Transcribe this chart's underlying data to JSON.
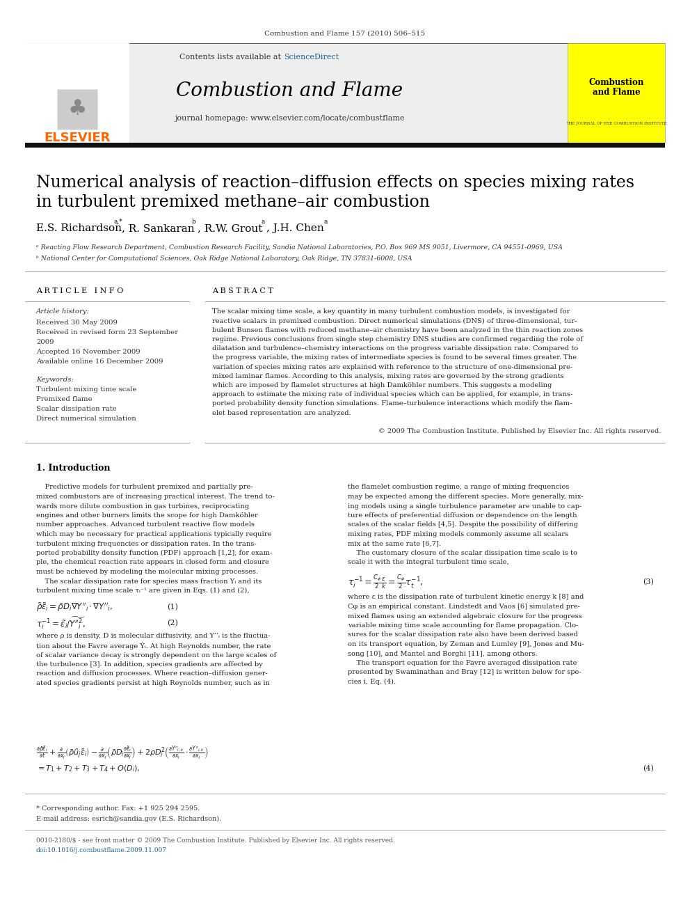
{
  "page_width": 9.92,
  "page_height": 13.23,
  "bg_color": "#ffffff",
  "journal_citation": "Combustion and Flame 157 (2010) 506–515",
  "header_bg": "#eeeeee",
  "contents_text": "Contents lists available at ",
  "sciencedirect_text": "ScienceDirect",
  "sciencedirect_color": "#1a6496",
  "journal_title": "Combustion and Flame",
  "journal_homepage": "journal homepage: www.elsevier.com/locate/combustflame",
  "article_title_line1": "Numerical analysis of reaction–diffusion effects on species mixing rates",
  "article_title_line2": "in turbulent premixed methane–air combustion",
  "affil_a": "ᵃ Reacting Flow Research Department, Combustion Research Facility, Sandia National Laboratories, P.O. Box 969 MS 9051, Livermore, CA 94551-0969, USA",
  "affil_b": "ᵇ National Center for Computational Sciences, Oak Ridge National Laboratory, Oak Ridge, TN 37831-6008, USA",
  "article_info_title": "A R T I C L E   I N F O",
  "abstract_title": "A B S T R A C T",
  "article_history_title": "Article history:",
  "received": "Received 30 May 2009",
  "revised1": "Received in revised form 23 September",
  "revised2": "2009",
  "accepted": "Accepted 16 November 2009",
  "available": "Available online 16 December 2009",
  "keywords_title": "Keywords:",
  "keywords": [
    "Turbulent mixing time scale",
    "Premixed flame",
    "Scalar dissipation rate",
    "Direct numerical simulation"
  ],
  "copyright_text": "© 2009 The Combustion Institute. Published by Elsevier Inc. All rights reserved.",
  "bottom_text1": "* Corresponding author. Fax: +1 925 294 2595.",
  "bottom_text2": "E-mail address: esrich@sandia.gov (E.S. Richardson).",
  "bottom_issn": "0010-2180/$ - see front matter © 2009 The Combustion Institute. Published by Elsevier Inc. All rights reserved.",
  "bottom_doi": "doi:10.1016/j.combustflame.2009.11.007",
  "elsevier_color": "#ff6600",
  "journal_cover_bg": "#ffff00",
  "journal_cover_title": "Combustion\nand Flame",
  "journal_cover_subtitle": "THE JOURNAL OF THE COMBUSTION INSTITUTE",
  "abstract_lines": [
    "The scalar mixing time scale, a key quantity in many turbulent combustion models, is investigated for",
    "reactive scalars in premixed combustion. Direct numerical simulations (DNS) of three-dimensional, tur-",
    "bulent Bunsen flames with reduced methane–air chemistry have been analyzed in the thin reaction zones",
    "regime. Previous conclusions from single step chemistry DNS studies are confirmed regarding the role of",
    "dilatation and turbulence–chemistry interactions on the progress variable dissipation rate. Compared to",
    "the progress variable, the mixing rates of intermediate species is found to be several times greater. The",
    "variation of species mixing rates are explained with reference to the structure of one-dimensional pre-",
    "mixed laminar flames. According to this analysis, mixing rates are governed by the strong gradients",
    "which are imposed by flamelet structures at high Damköhler numbers. This suggests a modeling",
    "approach to estimate the mixing rate of individual species which can be applied, for example, in trans-",
    "ported probability density function simulations. Flame–turbulence interactions which modify the flam-",
    "elet based representation are analyzed."
  ],
  "intro_col1_lines": [
    "    Predictive models for turbulent premixed and partially pre-",
    "mixed combustors are of increasing practical interest. The trend to-",
    "wards more dilute combustion in gas turbines, reciprocating",
    "engines and other burners limits the scope for high Damköhler",
    "number approaches. Advanced turbulent reactive flow models",
    "which may be necessary for practical applications typically require",
    "turbulent mixing frequencies or dissipation rates. In the trans-",
    "ported probability density function (PDF) approach [1,2], for exam-",
    "ple, the chemical reaction rate appears in closed form and closure",
    "must be achieved by modeling the molecular mixing processes.",
    "    The scalar dissipation rate for species mass fraction Yᵢ and its",
    "turbulent mixing time scale τᵢ⁻¹ are given in Eqs. (1) and (2),"
  ],
  "intro_col2_lines": [
    "the flamelet combustion regime, a range of mixing frequencies",
    "may be expected among the different species. More generally, mix-",
    "ing models using a single turbulence parameter are unable to cap-",
    "ture effects of preferential diffusion or dependence on the length",
    "scales of the scalar fields [4,5]. Despite the possibility of differing",
    "mixing rates, PDF mixing models commonly assume all scalars",
    "mix at the same rate [6,7].",
    "    The customary closure of the scalar dissipation time scale is to",
    "scale it with the integral turbulent time scale,"
  ],
  "after_eq3_lines": [
    "where ε is the dissipation rate of turbulent kinetic energy k [8] and",
    "Cφ is an empirical constant. Lindstedt and Vaos [6] simulated pre-",
    "mixed flames using an extended algebraic closure for the progress",
    "variable mixing time scale accounting for flame propagation. Clo-",
    "sures for the scalar dissipation rate also have been derived based",
    "on its transport equation, by Zeman and Lumley [9], Jones and Mu-",
    "song [10], and Mantel and Borghi [11], among others.",
    "    The transport equation for the Favre averaged dissipation rate",
    "presented by Swaminathan and Bray [12] is written below for spe-",
    "cies i, Eq. (4)."
  ],
  "after_eq_col1_lines": [
    "where ρ is density, D is molecular diffusivity, and Y’’ᵢ is the fluctua-",
    "tion about the Favre average Ẏᵢ. At high Reynolds number, the rate",
    "of scalar variance decay is strongly dependent on the large scales of",
    "the turbulence [3]. In addition, species gradients are affected by",
    "reaction and diffusion processes. Where reaction–diffusion gener-",
    "ated species gradients persist at high Reynolds number, such as in"
  ]
}
